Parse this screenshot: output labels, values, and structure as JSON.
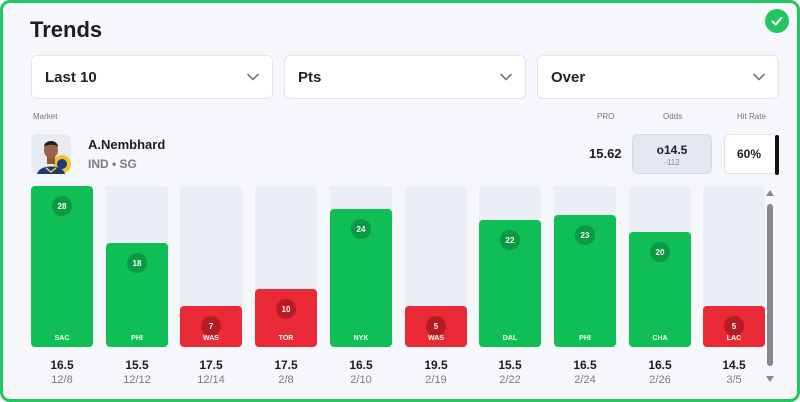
{
  "card": {
    "title": "Trends"
  },
  "filters": {
    "range": "Last 10",
    "stat": "Pts",
    "side": "Over"
  },
  "headers": {
    "market": "Market",
    "pro": "PRO",
    "odds": "Odds",
    "hit_rate": "Hit Rate"
  },
  "player": {
    "name": "A.Nembhard",
    "team": "IND • SG"
  },
  "metrics": {
    "pro": "15.62",
    "odds_line": "o14.5",
    "odds_price": "-112",
    "hit_rate": "60%"
  },
  "colors": {
    "over": "#0fbf55",
    "under": "#ea2a36",
    "accent": "#22c55e"
  },
  "scale_max": 28,
  "games": [
    {
      "opp": "SAC",
      "pts": 28,
      "line": "16.5",
      "date": "12/8",
      "result": "over"
    },
    {
      "opp": "PHI",
      "pts": 18,
      "line": "15.5",
      "date": "12/12",
      "result": "over"
    },
    {
      "opp": "WAS",
      "pts": 7,
      "line": "17.5",
      "date": "12/14",
      "result": "under"
    },
    {
      "opp": "TOR",
      "pts": 10,
      "line": "17.5",
      "date": "2/8",
      "result": "under"
    },
    {
      "opp": "NYK",
      "pts": 24,
      "line": "16.5",
      "date": "2/10",
      "result": "over"
    },
    {
      "opp": "WAS",
      "pts": 5,
      "line": "19.5",
      "date": "2/19",
      "result": "under"
    },
    {
      "opp": "DAL",
      "pts": 22,
      "line": "15.5",
      "date": "2/22",
      "result": "over"
    },
    {
      "opp": "PHI",
      "pts": 23,
      "line": "16.5",
      "date": "2/24",
      "result": "over"
    },
    {
      "opp": "CHA",
      "pts": 20,
      "line": "16.5",
      "date": "2/26",
      "result": "over"
    },
    {
      "opp": "LAC",
      "pts": 5,
      "line": "14.5",
      "date": "3/5",
      "result": "under"
    }
  ]
}
